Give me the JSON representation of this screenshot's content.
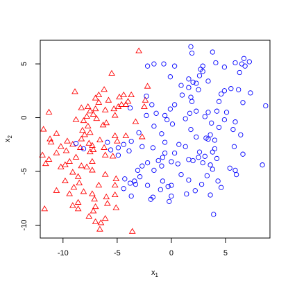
{
  "chart_data": {
    "type": "scatter",
    "xlabel": "x",
    "xlabel_sub": "1",
    "ylabel": "x",
    "ylabel_sub": "2",
    "xlim": [
      -12.1,
      9.1
    ],
    "ylim": [
      -11.2,
      7.2
    ],
    "xticks": [
      -10,
      -5,
      0,
      5
    ],
    "xtick_labels": [
      "-10",
      "-5",
      "0",
      "5"
    ],
    "yticks": [
      -10,
      -5,
      0,
      5
    ],
    "ytick_labels": [
      "-10",
      "-5",
      "0",
      "5"
    ],
    "grid": false,
    "series": [
      {
        "marker": "triangle",
        "color": "#ff0000",
        "points": [
          [
            -3.0,
            6.2
          ],
          [
            -5.5,
            4.1
          ],
          [
            -2.2,
            2.9
          ],
          [
            -6.2,
            2.6
          ],
          [
            -8.9,
            2.4
          ],
          [
            -6.7,
            2.1
          ],
          [
            -4.4,
            2.1
          ],
          [
            -3.7,
            2.1
          ],
          [
            -4.8,
            1.9
          ],
          [
            -7.0,
            1.8
          ],
          [
            -5.8,
            1.6
          ],
          [
            -2.4,
            1.6
          ],
          [
            -4.0,
            1.5
          ],
          [
            -6.7,
            1.4
          ],
          [
            -4.6,
            1.2
          ],
          [
            -4.2,
            1.2
          ],
          [
            -7.7,
            1.0
          ],
          [
            -4.9,
            1.0
          ],
          [
            -2.5,
            1.0
          ],
          [
            -8.3,
            0.9
          ],
          [
            -7.0,
            0.8
          ],
          [
            -5.3,
            0.8
          ],
          [
            -6.1,
            0.7
          ],
          [
            -7.5,
            0.6
          ],
          [
            -11.3,
            0.5
          ],
          [
            -7.2,
            0.3
          ],
          [
            -5.2,
            0.2
          ],
          [
            -7.8,
            0.1
          ],
          [
            -6.9,
            -0.1
          ],
          [
            -8.8,
            -0.2
          ],
          [
            -8.1,
            -0.3
          ],
          [
            -3.3,
            -0.4
          ],
          [
            -6.0,
            -0.5
          ],
          [
            -6.3,
            -0.7
          ],
          [
            -7.7,
            -0.8
          ],
          [
            -11.8,
            -1.1
          ],
          [
            -8.2,
            -1.2
          ],
          [
            -7.5,
            -1.4
          ],
          [
            -10.6,
            -1.5
          ],
          [
            -8.0,
            -1.6
          ],
          [
            -5.2,
            -1.7
          ],
          [
            -2.7,
            -1.8
          ],
          [
            -11.2,
            -2.0
          ],
          [
            -8.3,
            -2.0
          ],
          [
            -6.6,
            -2.1
          ],
          [
            -9.6,
            -2.2
          ],
          [
            -5.0,
            -2.2
          ],
          [
            -11.1,
            -2.3
          ],
          [
            -7.6,
            -2.4
          ],
          [
            -9.1,
            -2.5
          ],
          [
            -7.3,
            -2.6
          ],
          [
            -10.2,
            -2.7
          ],
          [
            -8.4,
            -2.8
          ],
          [
            -6.2,
            -2.8
          ],
          [
            -7.2,
            -3.0
          ],
          [
            -9.7,
            -3.1
          ],
          [
            -7.5,
            -3.2
          ],
          [
            -10.6,
            -3.3
          ],
          [
            -11.9,
            -3.5
          ],
          [
            -6.1,
            -3.5
          ],
          [
            -5.4,
            -3.6
          ],
          [
            -8.8,
            -3.7
          ],
          [
            -11.3,
            -3.9
          ],
          [
            -9.4,
            -4.1
          ],
          [
            -7.3,
            -4.1
          ],
          [
            -11.6,
            -4.3
          ],
          [
            -9.8,
            -4.4
          ],
          [
            -8.3,
            -4.5
          ],
          [
            -10.2,
            -4.6
          ],
          [
            -7.8,
            -4.6
          ],
          [
            -7.3,
            -4.9
          ],
          [
            -9.1,
            -5.1
          ],
          [
            -6.1,
            -5.3
          ],
          [
            -8.6,
            -5.5
          ],
          [
            -5.1,
            -5.7
          ],
          [
            -9.8,
            -5.9
          ],
          [
            -8.5,
            -6.1
          ],
          [
            -6.7,
            -6.3
          ],
          [
            -5.2,
            -6.3
          ],
          [
            -9.0,
            -6.5
          ],
          [
            -10.6,
            -6.8
          ],
          [
            -8.1,
            -6.9
          ],
          [
            -7.3,
            -7.1
          ],
          [
            -9.4,
            -7.1
          ],
          [
            -5.2,
            -7.2
          ],
          [
            -6.0,
            -7.4
          ],
          [
            -7.1,
            -7.6
          ],
          [
            -8.6,
            -7.9
          ],
          [
            -5.9,
            -8.0
          ],
          [
            -9.1,
            -8.2
          ],
          [
            -7.0,
            -8.3
          ],
          [
            -5.1,
            -8.4
          ],
          [
            -8.6,
            -8.5
          ],
          [
            -11.7,
            -8.5
          ],
          [
            -7.2,
            -8.7
          ],
          [
            -7.6,
            -9.2
          ],
          [
            -6.1,
            -9.4
          ],
          [
            -7.0,
            -9.7
          ],
          [
            -6.5,
            -9.8
          ],
          [
            -6.6,
            -10.4
          ],
          [
            -3.6,
            -10.6
          ],
          [
            -4.2,
            -1.7
          ]
        ]
      },
      {
        "marker": "circle",
        "color": "#0000ff",
        "points": [
          [
            1.8,
            6.6
          ],
          [
            1.9,
            6.0
          ],
          [
            3.8,
            6.1
          ],
          [
            6.7,
            5.5
          ],
          [
            7.2,
            5.2
          ],
          [
            -1.6,
            5.0
          ],
          [
            -0.7,
            5.0
          ],
          [
            4.1,
            5.1
          ],
          [
            5.9,
            5.1
          ],
          [
            6.5,
            5.0
          ],
          [
            0.3,
            4.8
          ],
          [
            -2.2,
            4.8
          ],
          [
            2.9,
            4.8
          ],
          [
            6.8,
            4.8
          ],
          [
            4.9,
            4.7
          ],
          [
            2.7,
            4.5
          ],
          [
            2.9,
            4.3
          ],
          [
            6.3,
            4.2
          ],
          [
            2.6,
            3.9
          ],
          [
            -0.1,
            3.8
          ],
          [
            1.6,
            3.6
          ],
          [
            3.4,
            3.4
          ],
          [
            2.0,
            3.3
          ],
          [
            2.3,
            3.2
          ],
          [
            0.9,
            3.0
          ],
          [
            1.6,
            2.8
          ],
          [
            5.5,
            2.7
          ],
          [
            6.2,
            2.6
          ],
          [
            2.5,
            2.6
          ],
          [
            4.9,
            2.5
          ],
          [
            7.3,
            2.3
          ],
          [
            4.6,
            2.2
          ],
          [
            1.0,
            2.1
          ],
          [
            -2.3,
            2.0
          ],
          [
            1.8,
            1.9
          ],
          [
            1.9,
            1.5
          ],
          [
            4.4,
            1.5
          ],
          [
            6.6,
            1.4
          ],
          [
            0.3,
            1.2
          ],
          [
            -1.8,
            1.2
          ],
          [
            8.7,
            1.1
          ],
          [
            -3.8,
            0.9
          ],
          [
            -0.1,
            0.8
          ],
          [
            2.3,
            0.6
          ],
          [
            4.2,
            0.6
          ],
          [
            3.4,
            0.5
          ],
          [
            5.1,
            0.5
          ],
          [
            -1.4,
            0.4
          ],
          [
            1.7,
            0.4
          ],
          [
            -2.3,
            0.2
          ],
          [
            -0.6,
            0.2
          ],
          [
            3.1,
            0.1
          ],
          [
            -0.4,
            -0.2
          ],
          [
            1.3,
            -0.1
          ],
          [
            4.9,
            -0.2
          ],
          [
            5.9,
            -0.4
          ],
          [
            0.1,
            -0.6
          ],
          [
            3.7,
            -0.5
          ],
          [
            -1.6,
            -0.8
          ],
          [
            4.4,
            -0.9
          ],
          [
            1.8,
            -1.1
          ],
          [
            5.7,
            -1.1
          ],
          [
            -3.0,
            -1.4
          ],
          [
            -0.9,
            -1.5
          ],
          [
            3.6,
            -1.6
          ],
          [
            6.4,
            -1.6
          ],
          [
            2.3,
            -1.8
          ],
          [
            3.2,
            -1.9
          ],
          [
            3.4,
            -2.0
          ],
          [
            4.0,
            -2.1
          ],
          [
            -3.7,
            -2.2
          ],
          [
            -5.9,
            -2.3
          ],
          [
            -0.6,
            -2.3
          ],
          [
            -8.8,
            -2.4
          ],
          [
            -4.4,
            -2.5
          ],
          [
            0.7,
            -2.5
          ],
          [
            -2.7,
            -2.7
          ],
          [
            1.3,
            -2.7
          ],
          [
            5.8,
            -2.7
          ],
          [
            -1.7,
            -2.8
          ],
          [
            -4.9,
            -2.8
          ],
          [
            4.0,
            -2.9
          ],
          [
            -5.6,
            -3.0
          ],
          [
            -3.9,
            -3.1
          ],
          [
            2.6,
            -3.2
          ],
          [
            3.8,
            -3.2
          ],
          [
            -0.6,
            -3.3
          ],
          [
            0.3,
            -3.3
          ],
          [
            6.6,
            -3.4
          ],
          [
            -4.9,
            -3.5
          ],
          [
            3.1,
            -3.6
          ],
          [
            -0.8,
            -3.7
          ],
          [
            2.5,
            -3.7
          ],
          [
            4.2,
            -3.8
          ],
          [
            1.6,
            -3.9
          ],
          [
            -1.2,
            -4.0
          ],
          [
            2.0,
            -4.0
          ],
          [
            0.0,
            -4.1
          ],
          [
            2.9,
            -4.2
          ],
          [
            -2.2,
            -4.2
          ],
          [
            0.6,
            -4.3
          ],
          [
            3.6,
            -4.4
          ],
          [
            -0.9,
            -4.5
          ],
          [
            8.4,
            -4.4
          ],
          [
            -2.7,
            -4.5
          ],
          [
            5.4,
            -4.7
          ],
          [
            3.8,
            -4.8
          ],
          [
            -3.1,
            -4.9
          ],
          [
            -1.6,
            -4.9
          ],
          [
            5.9,
            -4.9
          ],
          [
            0.9,
            -5.3
          ],
          [
            6.0,
            -5.3
          ],
          [
            3.3,
            -5.4
          ],
          [
            -2.9,
            -5.5
          ],
          [
            -4.3,
            -5.7
          ],
          [
            1.6,
            -5.8
          ],
          [
            -0.8,
            -5.9
          ],
          [
            4.3,
            -5.9
          ],
          [
            -3.8,
            -6.1
          ],
          [
            -3.3,
            -6.2
          ],
          [
            2.8,
            -6.2
          ],
          [
            0.0,
            -6.3
          ],
          [
            -2.2,
            -6.3
          ],
          [
            -0.3,
            -6.4
          ],
          [
            4.6,
            -6.5
          ],
          [
            -4.4,
            -6.6
          ],
          [
            -1.0,
            -6.7
          ],
          [
            2.2,
            -6.8
          ],
          [
            1.4,
            -7.1
          ],
          [
            3.6,
            -7.2
          ],
          [
            0.0,
            -7.3
          ],
          [
            -3.7,
            -7.3
          ],
          [
            -1.7,
            -7.4
          ],
          [
            -1.9,
            -7.6
          ],
          [
            -0.2,
            -7.8
          ],
          [
            3.9,
            -9.0
          ],
          [
            -3.4,
            -5.9
          ],
          [
            -8.1,
            -2.9
          ]
        ]
      }
    ]
  }
}
